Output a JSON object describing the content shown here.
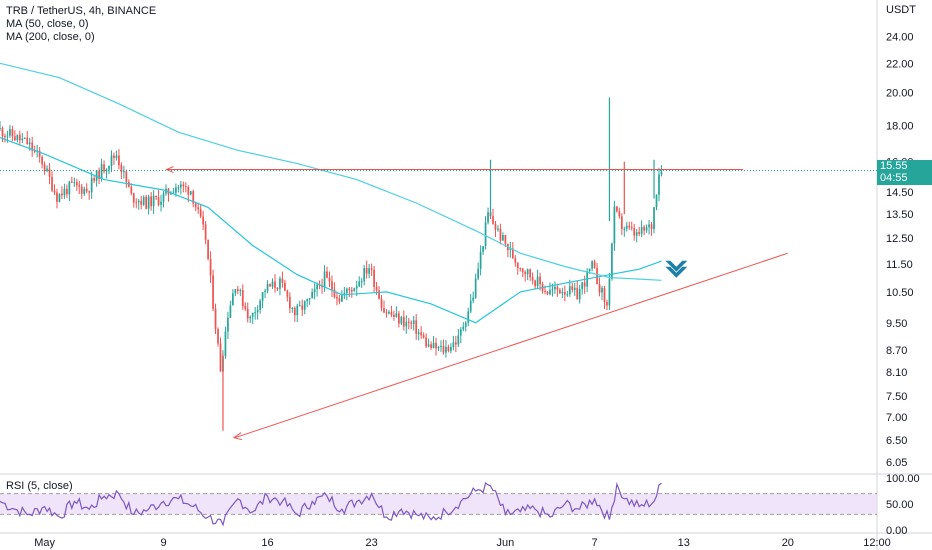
{
  "legend": {
    "title": "TRB / TetherUS, 4h, BINANCE",
    "ma50": "MA (50, close, 0)",
    "ma200": "MA (200, close, 0)",
    "rsi": "RSI (5, close)"
  },
  "price_axis": {
    "currency": "USDT",
    "last_price": "15.55",
    "countdown": "04:55"
  },
  "colors": {
    "up": "#26a69a",
    "down": "#ef5350",
    "ma50": "#26c6da",
    "ma200": "#4dd0e1",
    "drawing": "#ef5350",
    "arrow": "#1e7fa8",
    "rsi_line": "#7e57c2",
    "rsi_band": "#e9d8f8"
  },
  "chart_data": {
    "type": "candlestick",
    "title": "TRB / TetherUS, 4h, BINANCE",
    "y_scale": "log",
    "ylim": [
      5.9,
      27
    ],
    "y_ticks": [
      24.0,
      22.0,
      20.0,
      18.0,
      16.0,
      14.5,
      13.5,
      12.5,
      11.5,
      10.5,
      9.5,
      8.7,
      8.1,
      7.5,
      7.0,
      6.5,
      6.05
    ],
    "y_tick_labels": [
      "24.00",
      "22.00",
      "20.00",
      "18.00",
      "16.00",
      "14.50",
      "13.50",
      "12.50",
      "11.50",
      "10.50",
      "9.50",
      "8.70",
      "8.10",
      "7.50",
      "7.00",
      "6.50",
      "6.05"
    ],
    "x_ticks": [
      "May",
      "9",
      "16",
      "23",
      "Jun",
      "7",
      "13",
      "20",
      "12:00"
    ],
    "x_tick_dates": [
      "2021-05-01",
      "2021-05-09",
      "2021-05-16",
      "2021-05-23",
      "2021-06-01",
      "2021-06-07",
      "2021-06-13",
      "2021-06-20",
      "2021-06-26"
    ],
    "x_range": [
      "2021-04-28",
      "2021-06-26"
    ],
    "price_path": [
      [
        "2021-04-28",
        17.8
      ],
      [
        "2021-04-30",
        17.0
      ],
      [
        "2021-05-01",
        16.0
      ],
      [
        "2021-05-02",
        14.3
      ],
      [
        "2021-05-03",
        14.8
      ],
      [
        "2021-05-04",
        14.6
      ],
      [
        "2021-05-05",
        15.6
      ],
      [
        "2021-05-06",
        16.4
      ],
      [
        "2021-05-07",
        14.3
      ],
      [
        "2021-05-08",
        14.0
      ],
      [
        "2021-05-09",
        14.2
      ],
      [
        "2021-05-10",
        14.8
      ],
      [
        "2021-05-11",
        14.6
      ],
      [
        "2021-05-12",
        12.5
      ],
      [
        "2021-05-13",
        8.2
      ],
      [
        "2021-05-13T12:00",
        9.8
      ],
      [
        "2021-05-14",
        10.8
      ],
      [
        "2021-05-15",
        9.6
      ],
      [
        "2021-05-16",
        10.6
      ],
      [
        "2021-05-17",
        10.8
      ],
      [
        "2021-05-18",
        9.8
      ],
      [
        "2021-05-19",
        10.2
      ],
      [
        "2021-05-20",
        11.0
      ],
      [
        "2021-05-21",
        10.3
      ],
      [
        "2021-05-22",
        10.7
      ],
      [
        "2021-05-23",
        11.4
      ],
      [
        "2021-05-24",
        9.9
      ],
      [
        "2021-05-25",
        9.6
      ],
      [
        "2021-05-26",
        9.4
      ],
      [
        "2021-05-27",
        8.8
      ],
      [
        "2021-05-28",
        8.7
      ],
      [
        "2021-05-29",
        9.0
      ],
      [
        "2021-05-30",
        10.4
      ],
      [
        "2021-05-31",
        13.5
      ],
      [
        "2021-06-01",
        12.4
      ],
      [
        "2021-06-02",
        11.5
      ],
      [
        "2021-06-03",
        11.0
      ],
      [
        "2021-06-04",
        10.5
      ],
      [
        "2021-06-05",
        10.6
      ],
      [
        "2021-06-06",
        10.4
      ],
      [
        "2021-06-07",
        11.4
      ],
      [
        "2021-06-08",
        10.0
      ],
      [
        "2021-06-08T12:00",
        13.6
      ],
      [
        "2021-06-09",
        13.0
      ],
      [
        "2021-06-10",
        12.6
      ],
      [
        "2021-06-11",
        13.0
      ],
      [
        "2021-06-11T12:00",
        15.55
      ]
    ],
    "wicks": {
      "low_2021-05-13": 6.7,
      "high_2021-05-31": 16.1,
      "high_2021-06-08": 19.7,
      "high_2021-06-09": 16.0,
      "high_2021-06-11": 16.1
    },
    "series": [
      {
        "name": "MA (50, close, 0)",
        "points": [
          [
            "2021-04-28",
            17.3
          ],
          [
            "2021-05-01",
            16.4
          ],
          [
            "2021-05-05",
            15.1
          ],
          [
            "2021-05-09",
            14.6
          ],
          [
            "2021-05-12",
            13.8
          ],
          [
            "2021-05-15",
            12.2
          ],
          [
            "2021-05-18",
            11.1
          ],
          [
            "2021-05-21",
            10.4
          ],
          [
            "2021-05-24",
            10.5
          ],
          [
            "2021-05-27",
            10.1
          ],
          [
            "2021-05-30",
            9.5
          ],
          [
            "2021-06-02",
            10.5
          ],
          [
            "2021-06-05",
            10.8
          ],
          [
            "2021-06-08",
            11.1
          ],
          [
            "2021-06-10",
            11.3
          ],
          [
            "2021-06-11T12:00",
            11.6
          ]
        ]
      },
      {
        "name": "MA (200, close, 0)",
        "points": [
          [
            "2021-04-28",
            22.0
          ],
          [
            "2021-05-02",
            21.0
          ],
          [
            "2021-05-06",
            19.3
          ],
          [
            "2021-05-10",
            17.6
          ],
          [
            "2021-05-14",
            16.6
          ],
          [
            "2021-05-18",
            15.9
          ],
          [
            "2021-05-22",
            15.1
          ],
          [
            "2021-05-26",
            14.0
          ],
          [
            "2021-05-30",
            12.8
          ],
          [
            "2021-06-02",
            11.9
          ],
          [
            "2021-06-05",
            11.4
          ],
          [
            "2021-06-08",
            11.0
          ],
          [
            "2021-06-11T12:00",
            10.9
          ]
        ]
      }
    ],
    "annotations": {
      "horizontal_level": {
        "price": 15.6,
        "from": "2021-05-09",
        "to": "2021-06-17"
      },
      "trendline": {
        "from": [
          "2021-05-13",
          6.55
        ],
        "to": [
          "2021-06-20",
          11.9
        ]
      },
      "down_arrow": {
        "at": [
          "2021-06-12T12:00",
          11.1
        ]
      },
      "last_price_line": 15.55
    },
    "rsi": {
      "name": "RSI (5, close)",
      "ylim": [
        0,
        100
      ],
      "y_ticks": [
        100.0,
        50.0,
        0.0
      ],
      "y_tick_labels": [
        "100.00",
        "50.00",
        "0.00"
      ],
      "band": [
        30,
        70
      ],
      "points": [
        [
          "2021-04-28",
          55
        ],
        [
          "2021-04-29",
          40
        ],
        [
          "2021-04-30",
          30
        ],
        [
          "2021-05-01",
          45
        ],
        [
          "2021-05-02",
          25
        ],
        [
          "2021-05-03",
          55
        ],
        [
          "2021-05-04",
          40
        ],
        [
          "2021-05-05",
          65
        ],
        [
          "2021-05-06",
          70
        ],
        [
          "2021-05-07",
          30
        ],
        [
          "2021-05-08",
          40
        ],
        [
          "2021-05-09",
          55
        ],
        [
          "2021-05-10",
          60
        ],
        [
          "2021-05-11",
          45
        ],
        [
          "2021-05-12",
          25
        ],
        [
          "2021-05-13",
          10
        ],
        [
          "2021-05-14",
          60
        ],
        [
          "2021-05-15",
          35
        ],
        [
          "2021-05-16",
          65
        ],
        [
          "2021-05-17",
          55
        ],
        [
          "2021-05-18",
          30
        ],
        [
          "2021-05-19",
          55
        ],
        [
          "2021-05-20",
          65
        ],
        [
          "2021-05-21",
          40
        ],
        [
          "2021-05-22",
          55
        ],
        [
          "2021-05-23",
          70
        ],
        [
          "2021-05-24",
          25
        ],
        [
          "2021-05-25",
          40
        ],
        [
          "2021-05-26",
          30
        ],
        [
          "2021-05-27",
          20
        ],
        [
          "2021-05-28",
          35
        ],
        [
          "2021-05-29",
          55
        ],
        [
          "2021-05-30",
          75
        ],
        [
          "2021-05-31",
          85
        ],
        [
          "2021-06-01",
          30
        ],
        [
          "2021-06-02",
          35
        ],
        [
          "2021-06-03",
          40
        ],
        [
          "2021-06-04",
          25
        ],
        [
          "2021-06-05",
          50
        ],
        [
          "2021-06-06",
          40
        ],
        [
          "2021-06-07",
          60
        ],
        [
          "2021-06-08",
          20
        ],
        [
          "2021-06-08T12:00",
          88
        ],
        [
          "2021-06-09",
          60
        ],
        [
          "2021-06-10",
          45
        ],
        [
          "2021-06-11",
          55
        ],
        [
          "2021-06-11T12:00",
          90
        ]
      ]
    }
  }
}
